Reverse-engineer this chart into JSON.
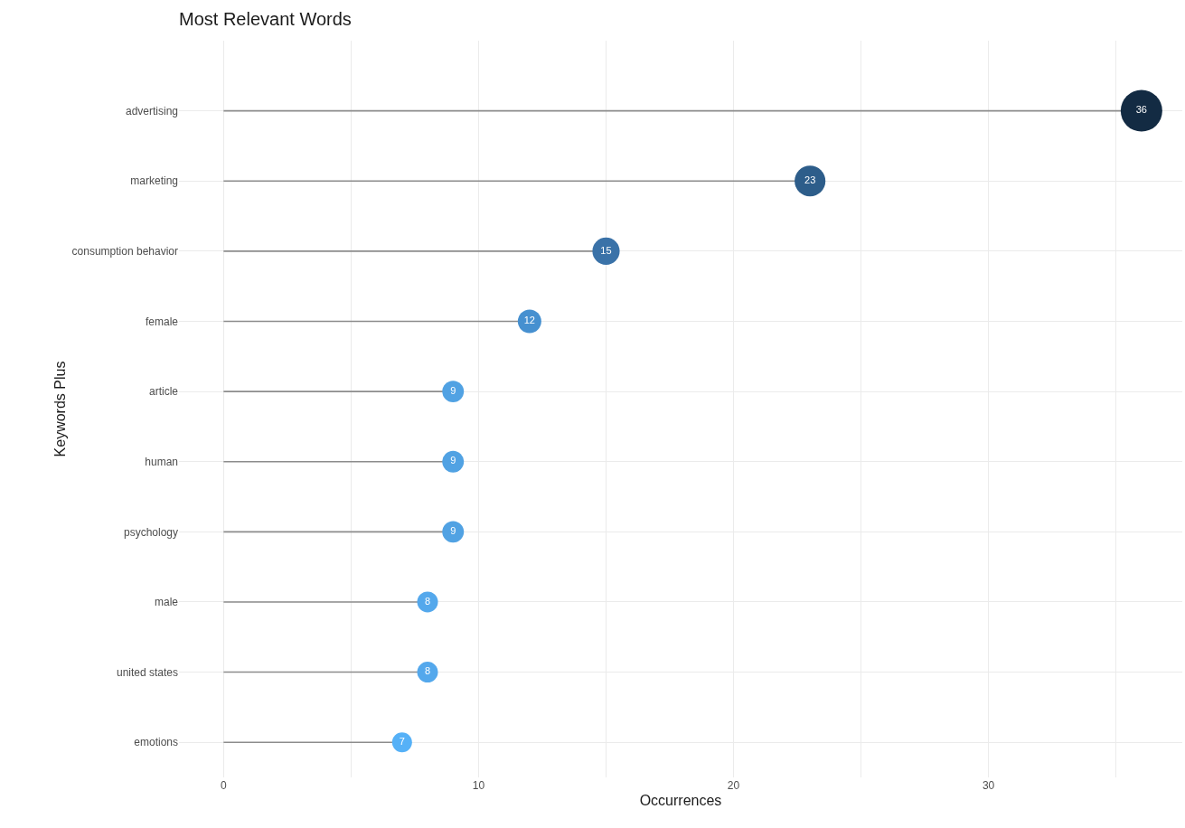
{
  "chart_data": {
    "type": "lollipop",
    "title": "Most Relevant Words",
    "xlabel": "Occurrences",
    "ylabel": "Keywords Plus",
    "categories": [
      "advertising",
      "marketing",
      "consumption behavior",
      "female",
      "article",
      "human",
      "psychology",
      "male",
      "united states",
      "emotions"
    ],
    "values": [
      36,
      23,
      15,
      12,
      9,
      9,
      9,
      8,
      8,
      7
    ],
    "colors": [
      "#132b43",
      "#2d5d8a",
      "#3a72a8",
      "#4690d0",
      "#51a2e3",
      "#51a2e3",
      "#51a2e3",
      "#54a8ec",
      "#54a8ec",
      "#56b1f7"
    ],
    "orientation": "horizontal",
    "sizes": [
      1,
      0.55,
      0.43,
      0.32,
      0.27,
      0.27,
      0.27,
      0.25,
      0.25,
      0.23
    ],
    "xlim": [
      -1.75,
      37.6
    ],
    "xticks": [
      0,
      {
        "value": 5,
        "label": null
      },
      10,
      {
        "value": 15,
        "label": null
      },
      20,
      {
        "value": 25,
        "label": null
      },
      30,
      {
        "value": 35,
        "label": null
      }
    ],
    "data_labels": true,
    "grid": true
  }
}
